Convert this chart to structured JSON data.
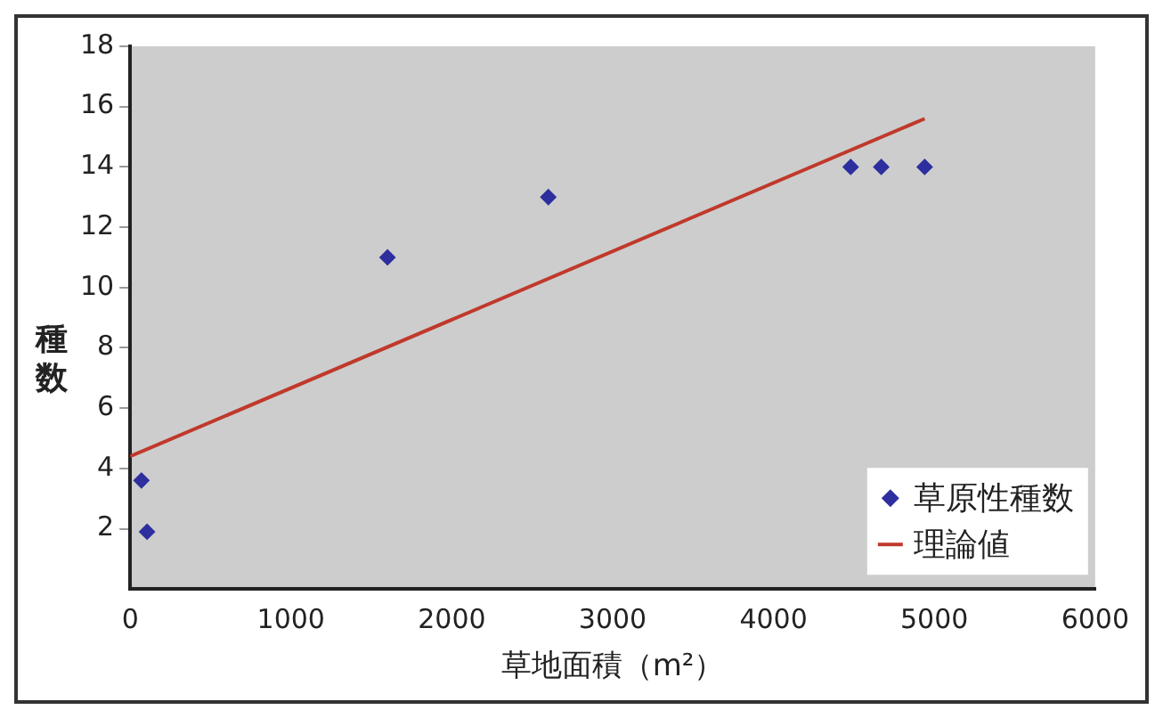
{
  "chart_data": {
    "type": "scatter",
    "xlabel": "草地面積（m²）",
    "ylabel": "種数",
    "xlim": [
      0,
      6000
    ],
    "xticks": [
      0,
      1000,
      2000,
      3000,
      4000,
      5000,
      6000
    ],
    "ylim": [
      0,
      18
    ],
    "yticks": [
      2,
      4,
      6,
      8,
      10,
      12,
      14,
      16,
      18
    ],
    "grid": false,
    "legend": "bottom right",
    "series": [
      {
        "name": "草原性種数",
        "marker": "diamond",
        "color": "#2e2f9e",
        "x": [
          70,
          105,
          1600,
          2600,
          4480,
          4670,
          4940
        ],
        "values": [
          3.6,
          1.9,
          11,
          13,
          14,
          14,
          14
        ]
      },
      {
        "name": "理論値",
        "type": "line",
        "color": "#c0392b",
        "x": [
          0,
          4940
        ],
        "values": [
          4.4,
          15.6
        ]
      }
    ]
  }
}
